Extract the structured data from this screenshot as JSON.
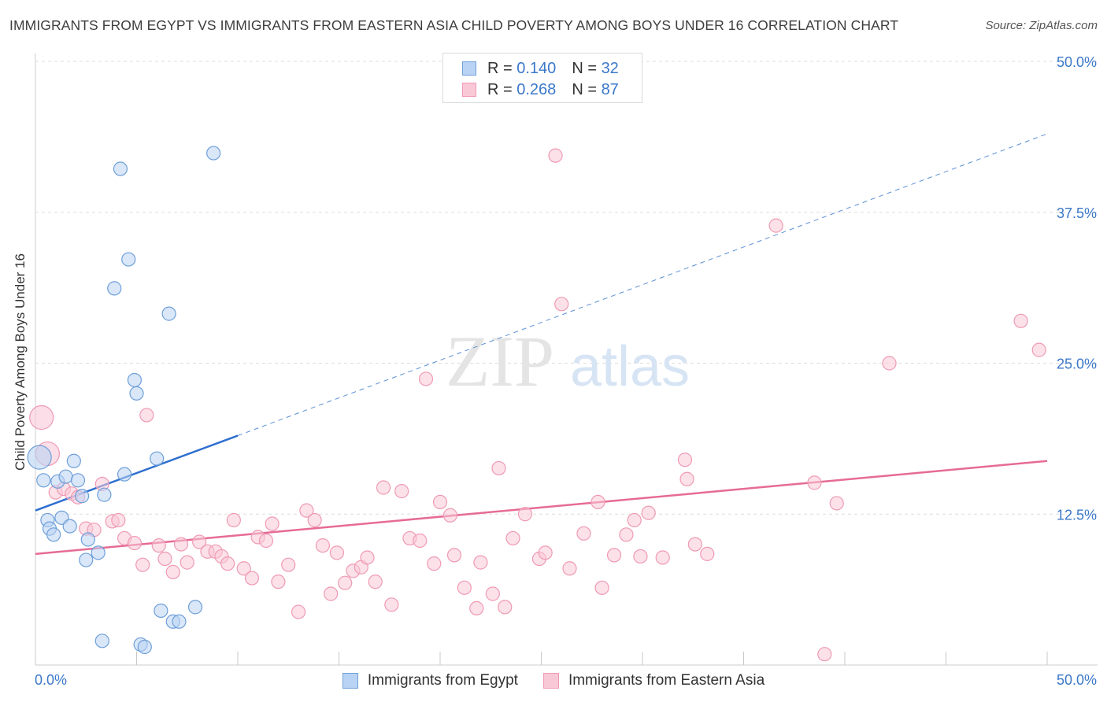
{
  "title": "IMMIGRANTS FROM EGYPT VS IMMIGRANTS FROM EASTERN ASIA CHILD POVERTY AMONG BOYS UNDER 16 CORRELATION CHART",
  "source": "Source: ZipAtlas.com",
  "watermark": {
    "zip": "ZIP",
    "atlas": "atlas"
  },
  "legend_top": {
    "rows": [
      {
        "r_label": "R =",
        "r_value": "0.140",
        "n_label": "N =",
        "n_value": "32",
        "color": "#b9d3f4",
        "border": "#6f9fd8"
      },
      {
        "r_label": "R =",
        "r_value": "0.268",
        "n_label": "N =",
        "n_value": "87",
        "color": "#f9c8d7",
        "border": "#ef9ab4"
      }
    ]
  },
  "legend_bottom": [
    {
      "label": "Immigrants from Egypt",
      "color": "#b9d3f4",
      "border": "#6f9fd8"
    },
    {
      "label": "Immigrants from Eastern Asia",
      "color": "#f9c8d7",
      "border": "#ef9ab4"
    }
  ],
  "chart_data": {
    "type": "scatter",
    "title": "IMMIGRANTS FROM EGYPT VS IMMIGRANTS FROM EASTERN ASIA CHILD POVERTY AMONG BOYS UNDER 16 CORRELATION CHART",
    "xlabel": "",
    "ylabel": "Child Poverty Among Boys Under 16",
    "xlim": [
      0,
      50
    ],
    "ylim": [
      0,
      50
    ],
    "x_tick_labels": [
      "0.0%",
      "50.0%"
    ],
    "y_tick_labels": [
      "12.5%",
      "25.0%",
      "37.5%",
      "50.0%"
    ],
    "y_ticks": [
      12.5,
      25,
      37.5,
      50
    ],
    "series": [
      {
        "name": "Immigrants from Egypt",
        "color": "#6f9fd8",
        "fill": "#b9d3f4",
        "trend": {
          "x": [
            0,
            10
          ],
          "y": [
            12.8,
            19.0
          ],
          "extend_to_x": 50,
          "extend_y": 44.0
        },
        "points": [
          {
            "x": 0.2,
            "y": 17.2,
            "big": true
          },
          {
            "x": 0.4,
            "y": 15.3
          },
          {
            "x": 0.6,
            "y": 12.0
          },
          {
            "x": 0.7,
            "y": 11.3
          },
          {
            "x": 0.9,
            "y": 10.8
          },
          {
            "x": 1.1,
            "y": 15.2
          },
          {
            "x": 1.3,
            "y": 12.2
          },
          {
            "x": 1.5,
            "y": 15.6
          },
          {
            "x": 1.7,
            "y": 11.5
          },
          {
            "x": 1.9,
            "y": 16.9
          },
          {
            "x": 2.1,
            "y": 15.3
          },
          {
            "x": 2.3,
            "y": 14.0
          },
          {
            "x": 2.5,
            "y": 8.7
          },
          {
            "x": 2.6,
            "y": 10.4
          },
          {
            "x": 3.1,
            "y": 9.3
          },
          {
            "x": 3.3,
            "y": 2.0
          },
          {
            "x": 3.4,
            "y": 14.1
          },
          {
            "x": 3.9,
            "y": 31.2
          },
          {
            "x": 4.2,
            "y": 41.1
          },
          {
            "x": 4.4,
            "y": 15.8
          },
          {
            "x": 4.6,
            "y": 33.6
          },
          {
            "x": 4.9,
            "y": 23.6
          },
          {
            "x": 5.0,
            "y": 22.5
          },
          {
            "x": 5.2,
            "y": 1.7
          },
          {
            "x": 5.4,
            "y": 1.5
          },
          {
            "x": 6.0,
            "y": 17.1
          },
          {
            "x": 6.2,
            "y": 4.5
          },
          {
            "x": 6.6,
            "y": 29.1
          },
          {
            "x": 6.8,
            "y": 3.6
          },
          {
            "x": 7.1,
            "y": 3.6
          },
          {
            "x": 7.9,
            "y": 4.8
          },
          {
            "x": 8.8,
            "y": 42.4
          }
        ]
      },
      {
        "name": "Immigrants from Eastern Asia",
        "color": "#ef9ab4",
        "fill": "#f9c8d7",
        "trend": {
          "x": [
            0,
            50
          ],
          "y": [
            9.2,
            16.9
          ]
        },
        "points": [
          {
            "x": 0.3,
            "y": 20.5,
            "big": true
          },
          {
            "x": 0.6,
            "y": 17.5,
            "big": true
          },
          {
            "x": 1.0,
            "y": 14.3
          },
          {
            "x": 1.4,
            "y": 14.6
          },
          {
            "x": 1.8,
            "y": 14.2
          },
          {
            "x": 2.1,
            "y": 13.9
          },
          {
            "x": 2.5,
            "y": 11.3
          },
          {
            "x": 2.9,
            "y": 11.2
          },
          {
            "x": 3.3,
            "y": 15.0
          },
          {
            "x": 3.8,
            "y": 11.9
          },
          {
            "x": 4.1,
            "y": 12.0
          },
          {
            "x": 4.4,
            "y": 10.5
          },
          {
            "x": 4.9,
            "y": 10.1
          },
          {
            "x": 5.3,
            "y": 8.3
          },
          {
            "x": 5.5,
            "y": 20.7
          },
          {
            "x": 6.1,
            "y": 9.9
          },
          {
            "x": 6.4,
            "y": 8.8
          },
          {
            "x": 6.8,
            "y": 7.7
          },
          {
            "x": 7.2,
            "y": 10.0
          },
          {
            "x": 7.5,
            "y": 8.5
          },
          {
            "x": 8.1,
            "y": 10.2
          },
          {
            "x": 8.5,
            "y": 9.4
          },
          {
            "x": 8.9,
            "y": 9.4
          },
          {
            "x": 9.2,
            "y": 9.0
          },
          {
            "x": 9.5,
            "y": 8.4
          },
          {
            "x": 9.8,
            "y": 12.0
          },
          {
            "x": 10.3,
            "y": 8.0
          },
          {
            "x": 10.7,
            "y": 7.2
          },
          {
            "x": 11.0,
            "y": 10.6
          },
          {
            "x": 11.4,
            "y": 10.3
          },
          {
            "x": 11.7,
            "y": 11.7
          },
          {
            "x": 12.0,
            "y": 6.9
          },
          {
            "x": 12.5,
            "y": 8.3
          },
          {
            "x": 13.0,
            "y": 4.4
          },
          {
            "x": 13.4,
            "y": 12.8
          },
          {
            "x": 13.8,
            "y": 12.0
          },
          {
            "x": 14.2,
            "y": 9.9
          },
          {
            "x": 14.6,
            "y": 5.9
          },
          {
            "x": 14.9,
            "y": 9.3
          },
          {
            "x": 15.3,
            "y": 6.8
          },
          {
            "x": 15.7,
            "y": 7.8
          },
          {
            "x": 16.1,
            "y": 8.1
          },
          {
            "x": 16.4,
            "y": 8.9
          },
          {
            "x": 16.8,
            "y": 6.9
          },
          {
            "x": 17.2,
            "y": 14.7
          },
          {
            "x": 17.6,
            "y": 5.0
          },
          {
            "x": 18.1,
            "y": 14.4
          },
          {
            "x": 18.5,
            "y": 10.5
          },
          {
            "x": 19.0,
            "y": 10.3
          },
          {
            "x": 19.3,
            "y": 23.7
          },
          {
            "x": 19.7,
            "y": 8.4
          },
          {
            "x": 20.0,
            "y": 13.5
          },
          {
            "x": 20.5,
            "y": 12.4
          },
          {
            "x": 20.7,
            "y": 9.1
          },
          {
            "x": 21.2,
            "y": 6.4
          },
          {
            "x": 21.8,
            "y": 4.7
          },
          {
            "x": 22.0,
            "y": 8.5
          },
          {
            "x": 22.6,
            "y": 5.9
          },
          {
            "x": 22.9,
            "y": 16.3
          },
          {
            "x": 23.2,
            "y": 4.8
          },
          {
            "x": 23.6,
            "y": 10.5
          },
          {
            "x": 24.2,
            "y": 12.5
          },
          {
            "x": 24.9,
            "y": 8.8
          },
          {
            "x": 25.2,
            "y": 9.3
          },
          {
            "x": 25.7,
            "y": 42.2
          },
          {
            "x": 26.0,
            "y": 29.9
          },
          {
            "x": 26.4,
            "y": 8.0
          },
          {
            "x": 27.1,
            "y": 10.9
          },
          {
            "x": 27.8,
            "y": 13.5
          },
          {
            "x": 28.0,
            "y": 6.4
          },
          {
            "x": 28.6,
            "y": 9.1
          },
          {
            "x": 29.2,
            "y": 10.8
          },
          {
            "x": 29.6,
            "y": 12.0
          },
          {
            "x": 29.9,
            "y": 9.0
          },
          {
            "x": 30.3,
            "y": 12.6
          },
          {
            "x": 31.0,
            "y": 8.9
          },
          {
            "x": 32.1,
            "y": 17.0
          },
          {
            "x": 32.2,
            "y": 15.4
          },
          {
            "x": 32.6,
            "y": 10.0
          },
          {
            "x": 33.2,
            "y": 9.2
          },
          {
            "x": 36.6,
            "y": 36.4
          },
          {
            "x": 38.5,
            "y": 15.1
          },
          {
            "x": 39.0,
            "y": 0.9
          },
          {
            "x": 39.6,
            "y": 13.4
          },
          {
            "x": 42.2,
            "y": 25.0
          },
          {
            "x": 48.7,
            "y": 28.5
          },
          {
            "x": 49.6,
            "y": 26.1
          }
        ]
      }
    ]
  }
}
